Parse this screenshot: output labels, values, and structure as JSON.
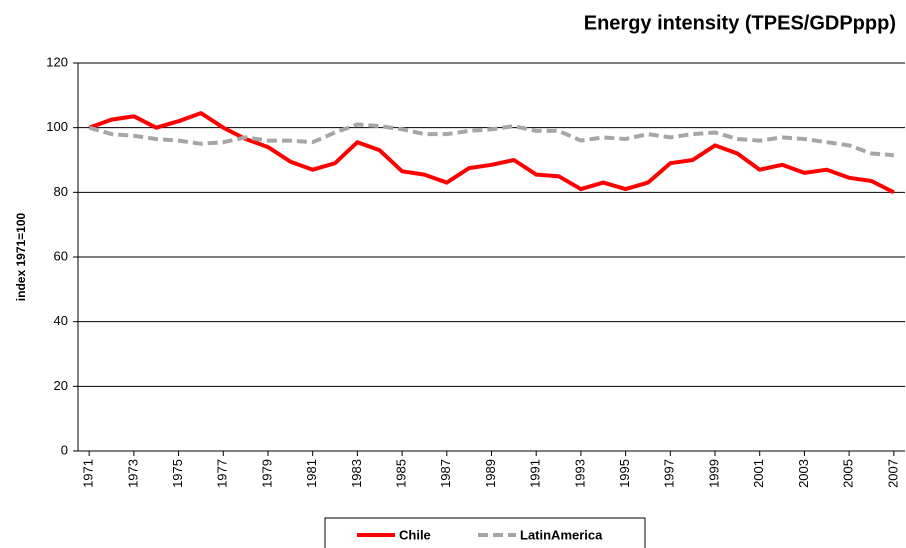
{
  "chart_data": {
    "type": "line",
    "title": "Energy intensity (TPES/GDPppp)",
    "y_label": "index 1971=100",
    "x": [
      1971,
      1972,
      1973,
      1974,
      1975,
      1976,
      1977,
      1978,
      1979,
      1980,
      1981,
      1982,
      1983,
      1984,
      1985,
      1986,
      1987,
      1988,
      1989,
      1990,
      1991,
      1992,
      1993,
      1994,
      1995,
      1996,
      1997,
      1998,
      1999,
      2000,
      2001,
      2002,
      2003,
      2004,
      2005,
      2006,
      2007
    ],
    "series": [
      {
        "name": "Chile",
        "color": "#ff0000",
        "dash": false,
        "values": [
          100,
          102.5,
          103.5,
          100,
          102,
          104.5,
          100,
          96.5,
          94,
          89.5,
          87,
          89,
          95.5,
          93,
          86.5,
          85.5,
          83,
          87.5,
          88.5,
          90,
          85.5,
          85,
          81,
          83,
          81,
          83,
          89,
          90,
          94.5,
          92,
          87,
          88.5,
          86,
          87,
          84.5,
          83.5,
          80
        ]
      },
      {
        "name": "LatinAmerica",
        "color": "#a6a6a6",
        "dash": true,
        "values": [
          100,
          98,
          97.5,
          96.5,
          96,
          95,
          95.5,
          97,
          96,
          96,
          95.5,
          98.5,
          101,
          100.5,
          99.5,
          98,
          98,
          99,
          99.5,
          100.5,
          99,
          99,
          96,
          97,
          96.5,
          98,
          97,
          98,
          98.5,
          96.5,
          96,
          97,
          96.5,
          95.5,
          94.5,
          92,
          91.5
        ]
      }
    ],
    "xlim": [
      1970.5,
      2007.5
    ],
    "xticks": [
      1971,
      1973,
      1975,
      1977,
      1979,
      1981,
      1983,
      1985,
      1987,
      1989,
      1991,
      1993,
      1995,
      1997,
      1999,
      2001,
      2003,
      2005,
      2007
    ],
    "ylim": [
      0,
      120
    ],
    "yticks": [
      0,
      20,
      40,
      60,
      80,
      100,
      120
    ],
    "grid": true
  }
}
